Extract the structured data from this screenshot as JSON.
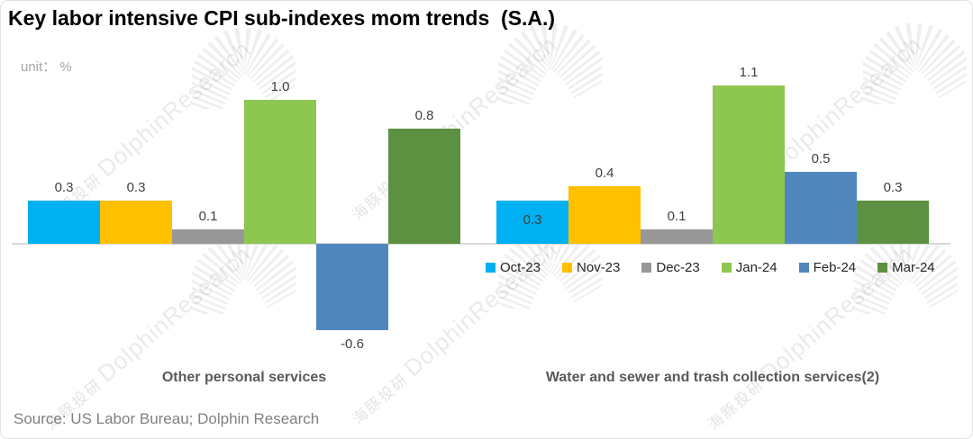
{
  "title": "Key labor intensive CPI sub-indexes mom trends  (S.A.)",
  "unit_label": "unit： %",
  "source": "Source: US Labor Bureau; Dolphin Research",
  "watermark": {
    "cn": "海豚投研",
    "en": "DolphinResearch"
  },
  "colors": {
    "axis": "#d9d9d9",
    "label_text": "#404040",
    "category_text": "#595959",
    "title_text": "#000000",
    "unit_text": "#a6a6a6",
    "source_text": "#808080"
  },
  "chart_data": {
    "type": "bar",
    "title": "Key labor intensive CPI sub-indexes mom trends  (S.A.)",
    "ylabel": "unit： %",
    "xlabel": "",
    "grid": false,
    "ylim": [
      -0.6,
      1.1
    ],
    "baseline": 0,
    "legend_position": "bottom-right",
    "categories": [
      "Other personal services",
      "Water and sewer and trash collection services(2)"
    ],
    "series": [
      {
        "name": "Oct-23",
        "color": "#00B0F0",
        "values": [
          0.3,
          0.3
        ]
      },
      {
        "name": "Nov-23",
        "color": "#FFC000",
        "values": [
          0.3,
          0.4
        ]
      },
      {
        "name": "Dec-23",
        "color": "#979797",
        "values": [
          0.1,
          0.1
        ]
      },
      {
        "name": "Jan-24",
        "color": "#8DC751",
        "values": [
          1.0,
          1.1
        ]
      },
      {
        "name": "Feb-24",
        "color": "#5088BE",
        "values": [
          -0.6,
          0.5
        ]
      },
      {
        "name": "Mar-24",
        "color": "#5C9141",
        "values": [
          0.8,
          0.3
        ]
      }
    ],
    "label_overrides": [
      {
        "series": "Oct-23",
        "category_index": 1,
        "position": "inside-base"
      }
    ]
  }
}
